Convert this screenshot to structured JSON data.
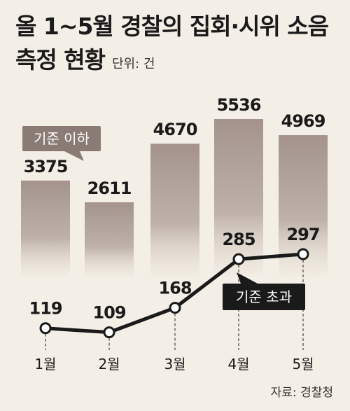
{
  "title_line1": "올 1~5월 경찰의 집회·시위 소음",
  "title_line2": "측정 현황",
  "unit_label": "단위: 건",
  "source": "자료: 경찰청",
  "colors": {
    "bar": "#a3938c",
    "line": "#1a1a1a",
    "label_below": "#8a7b74",
    "label_above": "#1a1a1a",
    "background": "#f4efe6"
  },
  "chart_data": {
    "type": "bar",
    "categories": [
      "1월",
      "2월",
      "3월",
      "4월",
      "5월"
    ],
    "series": [
      {
        "name": "기준 이하",
        "type": "bar",
        "values": [
          3375,
          2611,
          4670,
          5536,
          4969
        ]
      },
      {
        "name": "기준 초과",
        "type": "line",
        "values": [
          119,
          109,
          168,
          285,
          297
        ]
      }
    ],
    "title": "올 1~5월 경찰의 집회·시위 소음 측정 현황",
    "unit": "단위: 건"
  }
}
